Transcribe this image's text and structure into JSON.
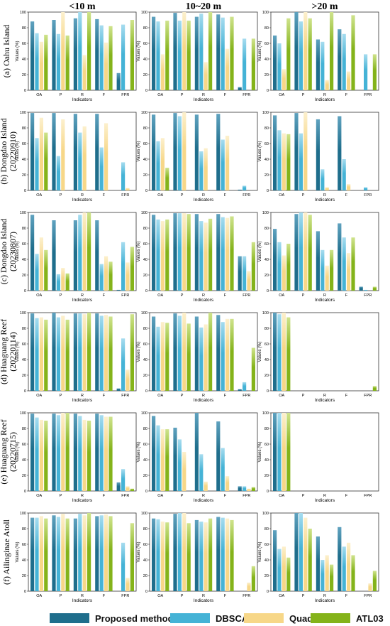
{
  "figure": {
    "column_titles": [
      "<10 m",
      "10~20 m",
      ">20 m"
    ],
    "row_labels": [
      [
        "(a) Oahu Island"
      ],
      [
        "(b) Dongdao Island",
        "(20220910)"
      ],
      [
        "(c) Dongdao Island",
        "(20230807)"
      ],
      [
        "(d) Huaguang Reef",
        "(20220114)"
      ],
      [
        "(e) Huaguang Reef",
        "(20220715)"
      ],
      [
        "(f) Ailinginae Atoll"
      ]
    ],
    "xlabel": "Indicators",
    "ylabel": "Values (%)",
    "indicators": [
      "OA",
      "P",
      "R",
      "F",
      "FPR"
    ],
    "yticks": [
      0,
      20,
      40,
      60,
      80,
      100
    ]
  },
  "legend": [
    {
      "name": "Proposed method",
      "color": "#1f6e8c",
      "color_light": "#5fa2bf"
    },
    {
      "name": "DBSCAN",
      "color": "#45b3d6",
      "color_light": "#a6dcef"
    },
    {
      "name": "Quadtree",
      "color": "#f7d788",
      "color_light": "#fcf0cd"
    },
    {
      "name": "ATL03",
      "color": "#84b31a",
      "color_light": "#cfe38c"
    }
  ],
  "chart_data": [
    {
      "type": "bar",
      "title": "<10 m",
      "row": "(a) Oahu Island",
      "categories": [
        "OA",
        "P",
        "R",
        "F",
        "FPR"
      ],
      "ylim": [
        0,
        100
      ],
      "series": [
        {
          "name": "Proposed method",
          "values": [
            88,
            90,
            92,
            91,
            22
          ]
        },
        {
          "name": "DBSCAN",
          "values": [
            73,
            72,
            100,
            83,
            84
          ]
        },
        {
          "name": "Quadtree",
          "values": [
            62,
            100,
            45,
            61,
            0
          ]
        },
        {
          "name": "ATL03",
          "values": [
            71,
            70,
            100,
            82,
            90
          ]
        }
      ]
    },
    {
      "type": "bar",
      "title": "10~20 m",
      "row": "(a) Oahu Island",
      "categories": [
        "OA",
        "P",
        "R",
        "F",
        "FPR"
      ],
      "ylim": [
        0,
        100
      ],
      "series": [
        {
          "name": "Proposed method",
          "values": [
            94,
            99,
            94,
            97,
            4
          ]
        },
        {
          "name": "DBSCAN",
          "values": [
            88,
            89,
            98,
            93,
            66
          ]
        },
        {
          "name": "Quadtree",
          "values": [
            46,
            100,
            36,
            53,
            0
          ]
        },
        {
          "name": "ATL03",
          "values": [
            89,
            89,
            100,
            94,
            66
          ]
        }
      ]
    },
    {
      "type": "bar",
      "title": ">20 m",
      "row": "(a) Oahu Island",
      "categories": [
        "OA",
        "P",
        "R",
        "F",
        "FPR"
      ],
      "ylim": [
        0,
        100
      ],
      "series": [
        {
          "name": "Proposed method",
          "values": [
            70,
            100,
            65,
            78,
            0
          ]
        },
        {
          "name": "DBSCAN",
          "values": [
            60,
            88,
            62,
            72,
            46
          ]
        },
        {
          "name": "Quadtree",
          "values": [
            27,
            100,
            13,
            24,
            0
          ]
        },
        {
          "name": "ATL03",
          "values": [
            92,
            92,
            100,
            96,
            46
          ]
        }
      ]
    },
    {
      "type": "bar",
      "title": "<10 m",
      "row": "(b) Dongdao Island (20220910)",
      "categories": [
        "OA",
        "P",
        "R",
        "F",
        "FPR"
      ],
      "ylim": [
        0,
        100
      ],
      "series": [
        {
          "name": "Proposed method",
          "values": [
            99,
            99,
            98,
            98,
            0
          ]
        },
        {
          "name": "DBSCAN",
          "values": [
            67,
            44,
            74,
            55,
            36
          ]
        },
        {
          "name": "Quadtree",
          "values": [
            93,
            91,
            82,
            86,
            3
          ]
        },
        {
          "name": "ATL03",
          "values": [
            74,
            0,
            0,
            0,
            0
          ]
        }
      ]
    },
    {
      "type": "bar",
      "title": "10~20 m",
      "row": "(b) Dongdao Island (20220910)",
      "categories": [
        "OA",
        "P",
        "R",
        "F",
        "FPR"
      ],
      "ylim": [
        0,
        100
      ],
      "series": [
        {
          "name": "Proposed method",
          "values": [
            97,
            99,
            97,
            98,
            1
          ]
        },
        {
          "name": "DBSCAN",
          "values": [
            63,
            95,
            50,
            65,
            6
          ]
        },
        {
          "name": "Quadtree",
          "values": [
            67,
            100,
            54,
            70,
            0
          ]
        },
        {
          "name": "ATL03",
          "values": [
            29,
            0,
            0,
            0,
            0
          ]
        }
      ]
    },
    {
      "type": "bar",
      "title": ">20 m",
      "row": "(b) Dongdao Island (20220910)",
      "categories": [
        "OA",
        "P",
        "R",
        "F",
        "FPR"
      ],
      "ylim": [
        0,
        100
      ],
      "series": [
        {
          "name": "Proposed method",
          "values": [
            96,
            99,
            91,
            95,
            0
          ]
        },
        {
          "name": "DBSCAN",
          "values": [
            77,
            73,
            27,
            40,
            4
          ]
        },
        {
          "name": "Quadtree",
          "values": [
            73,
            100,
            4,
            8,
            0
          ]
        },
        {
          "name": "ATL03",
          "values": [
            72,
            0,
            0,
            0,
            0
          ]
        }
      ]
    },
    {
      "type": "bar",
      "title": "<10 m",
      "row": "(c) Dongdao Island (20230807)",
      "categories": [
        "OA",
        "P",
        "R",
        "F",
        "FPR"
      ],
      "ylim": [
        0,
        100
      ],
      "series": [
        {
          "name": "Proposed method",
          "values": [
            97,
            90,
            90,
            90,
            1
          ]
        },
        {
          "name": "DBSCAN",
          "values": [
            47,
            21,
            97,
            34,
            62
          ]
        },
        {
          "name": "Quadtree",
          "values": [
            68,
            29,
            100,
            44,
            36
          ]
        },
        {
          "name": "ATL03",
          "values": [
            52,
            22,
            100,
            37,
            56
          ]
        }
      ]
    },
    {
      "type": "bar",
      "title": "10~20 m",
      "row": "(c) Dongdao Island (20230807)",
      "categories": [
        "OA",
        "P",
        "R",
        "F",
        "FPR"
      ],
      "ylim": [
        0,
        100
      ],
      "series": [
        {
          "name": "Proposed method",
          "values": [
            97,
            99,
            98,
            98,
            44
          ]
        },
        {
          "name": "DBSCAN",
          "values": [
            91,
            99,
            89,
            94,
            44
          ]
        },
        {
          "name": "Quadtree",
          "values": [
            89,
            99,
            87,
            93,
            25
          ]
        },
        {
          "name": "ATL03",
          "values": [
            91,
            98,
            92,
            95,
            62
          ]
        }
      ]
    },
    {
      "type": "bar",
      "title": ">20 m",
      "row": "(c) Dongdao Island (20230807)",
      "categories": [
        "OA",
        "P",
        "R",
        "F",
        "FPR"
      ],
      "ylim": [
        0,
        100
      ],
      "series": [
        {
          "name": "Proposed method",
          "values": [
            79,
            98,
            76,
            86,
            5
          ]
        },
        {
          "name": "DBSCAN",
          "values": [
            62,
            100,
            52,
            68,
            1
          ]
        },
        {
          "name": "Quadtree",
          "values": [
            45,
            100,
            32,
            48,
            0
          ]
        },
        {
          "name": "ATL03",
          "values": [
            60,
            97,
            52,
            68,
            5
          ]
        }
      ]
    },
    {
      "type": "bar",
      "title": "<10 m",
      "row": "(d) Huaguang Reef (20220114)",
      "categories": [
        "OA",
        "P",
        "R",
        "F",
        "FPR"
      ],
      "ylim": [
        0,
        100
      ],
      "series": [
        {
          "name": "Proposed method",
          "values": [
            99,
            100,
            99,
            99,
            3
          ]
        },
        {
          "name": "DBSCAN",
          "values": [
            93,
            94,
            99,
            96,
            67
          ]
        },
        {
          "name": "Quadtree",
          "values": [
            94,
            96,
            98,
            97,
            27
          ]
        },
        {
          "name": "ATL03",
          "values": [
            91,
            91,
            100,
            95,
            98
          ]
        }
      ]
    },
    {
      "type": "bar",
      "title": "10~20 m",
      "row": "(d) Huaguang Reef (20220114)",
      "categories": [
        "OA",
        "P",
        "R",
        "F",
        "FPR"
      ],
      "ylim": [
        0,
        100
      ],
      "series": [
        {
          "name": "Proposed method",
          "values": [
            95,
            99,
            95,
            97,
            2
          ]
        },
        {
          "name": "DBSCAN",
          "values": [
            82,
            96,
            81,
            88,
            11
          ]
        },
        {
          "name": "Quadtree",
          "values": [
            88,
            100,
            85,
            92,
            0
          ]
        },
        {
          "name": "ATL03",
          "values": [
            87,
            86,
            100,
            92,
            55
          ]
        }
      ]
    },
    {
      "type": "bar",
      "title": ">20 m",
      "row": "(d) Huaguang Reef (20220114)",
      "categories": [
        "OA",
        "P",
        "R",
        "F",
        "FPR"
      ],
      "ylim": [
        0,
        100
      ],
      "series": [
        {
          "name": "Proposed method",
          "values": [
            100,
            0,
            0,
            0,
            0
          ]
        },
        {
          "name": "DBSCAN",
          "values": [
            98,
            0,
            0,
            0,
            0
          ]
        },
        {
          "name": "Quadtree",
          "values": [
            100,
            0,
            0,
            0,
            0
          ]
        },
        {
          "name": "ATL03",
          "values": [
            94,
            0,
            0,
            0,
            6
          ]
        }
      ]
    },
    {
      "type": "bar",
      "title": "<10 m",
      "row": "(e) Huaguang Reef (20220715)",
      "categories": [
        "OA",
        "P",
        "R",
        "F",
        "FPR"
      ],
      "ylim": [
        0,
        100
      ],
      "series": [
        {
          "name": "Proposed method",
          "values": [
            99,
            99,
            99,
            99,
            11
          ]
        },
        {
          "name": "DBSCAN",
          "values": [
            94,
            97,
            96,
            97,
            28
          ]
        },
        {
          "name": "Quadtree",
          "values": [
            91,
            100,
            91,
            95,
            6
          ]
        },
        {
          "name": "ATL03",
          "values": [
            90,
            100,
            90,
            95,
            3
          ]
        }
      ]
    },
    {
      "type": "bar",
      "title": "10~20 m",
      "row": "(e) Huaguang Reef (20220715)",
      "categories": [
        "OA",
        "P",
        "R",
        "F",
        "FPR"
      ],
      "ylim": [
        0,
        100
      ],
      "series": [
        {
          "name": "Proposed method",
          "values": [
            96,
            81,
            100,
            89,
            6
          ]
        },
        {
          "name": "DBSCAN",
          "values": [
            84,
            66,
            47,
            55,
            6
          ]
        },
        {
          "name": "Quadtree",
          "values": [
            79,
            50,
            12,
            19,
            3
          ]
        },
        {
          "name": "ATL03",
          "values": [
            79,
            0,
            0,
            0,
            5
          ]
        }
      ]
    },
    {
      "type": "bar",
      "title": ">20 m",
      "row": "(e) Huaguang Reef (20220715)",
      "categories": [
        "OA",
        "P",
        "R",
        "F",
        "FPR"
      ],
      "ylim": [
        0,
        100
      ],
      "series": [
        {
          "name": "Proposed method",
          "values": [
            100,
            0,
            0,
            0,
            0
          ]
        },
        {
          "name": "DBSCAN",
          "values": [
            100,
            0,
            0,
            0,
            0
          ]
        },
        {
          "name": "Quadtree",
          "values": [
            100,
            0,
            0,
            0,
            0
          ]
        },
        {
          "name": "ATL03",
          "values": [
            100,
            0,
            0,
            0,
            0
          ]
        }
      ]
    },
    {
      "type": "bar",
      "title": "<10 m",
      "row": "(f) Ailinginae Atoll",
      "categories": [
        "OA",
        "P",
        "R",
        "F",
        "FPR"
      ],
      "ylim": [
        0,
        100
      ],
      "series": [
        {
          "name": "Proposed method",
          "values": [
            94,
            97,
            93,
            96,
            0
          ]
        },
        {
          "name": "DBSCAN",
          "values": [
            94,
            95,
            99,
            97,
            62
          ]
        },
        {
          "name": "Quadtree",
          "values": [
            96,
            99,
            97,
            98,
            17
          ]
        },
        {
          "name": "ATL03",
          "values": [
            93,
            93,
            100,
            96,
            87
          ]
        }
      ]
    },
    {
      "type": "bar",
      "title": "10~20 m",
      "row": "(f) Ailinginae Atoll",
      "categories": [
        "OA",
        "P",
        "R",
        "F",
        "FPR"
      ],
      "ylim": [
        0,
        100
      ],
      "series": [
        {
          "name": "Proposed method",
          "values": [
            93,
            99,
            91,
            95,
            0
          ]
        },
        {
          "name": "DBSCAN",
          "values": [
            92,
            100,
            89,
            94,
            0
          ]
        },
        {
          "name": "Quadtree",
          "values": [
            89,
            100,
            88,
            93,
            11
          ]
        },
        {
          "name": "ATL03",
          "values": [
            88,
            87,
            93,
            91,
            32
          ]
        }
      ]
    },
    {
      "type": "bar",
      "title": ">20 m",
      "row": "(f) Ailinginae Atoll",
      "categories": [
        "OA",
        "P",
        "R",
        "F",
        "FPR"
      ],
      "ylim": [
        0,
        100
      ],
      "series": [
        {
          "name": "Proposed method",
          "values": [
            78,
            100,
            70,
            82,
            0
          ]
        },
        {
          "name": "DBSCAN",
          "values": [
            54,
            100,
            40,
            57,
            0
          ]
        },
        {
          "name": "Quadtree",
          "values": [
            57,
            94,
            46,
            62,
            10
          ]
        },
        {
          "name": "ATL03",
          "values": [
            43,
            80,
            34,
            46,
            26
          ]
        }
      ]
    }
  ]
}
